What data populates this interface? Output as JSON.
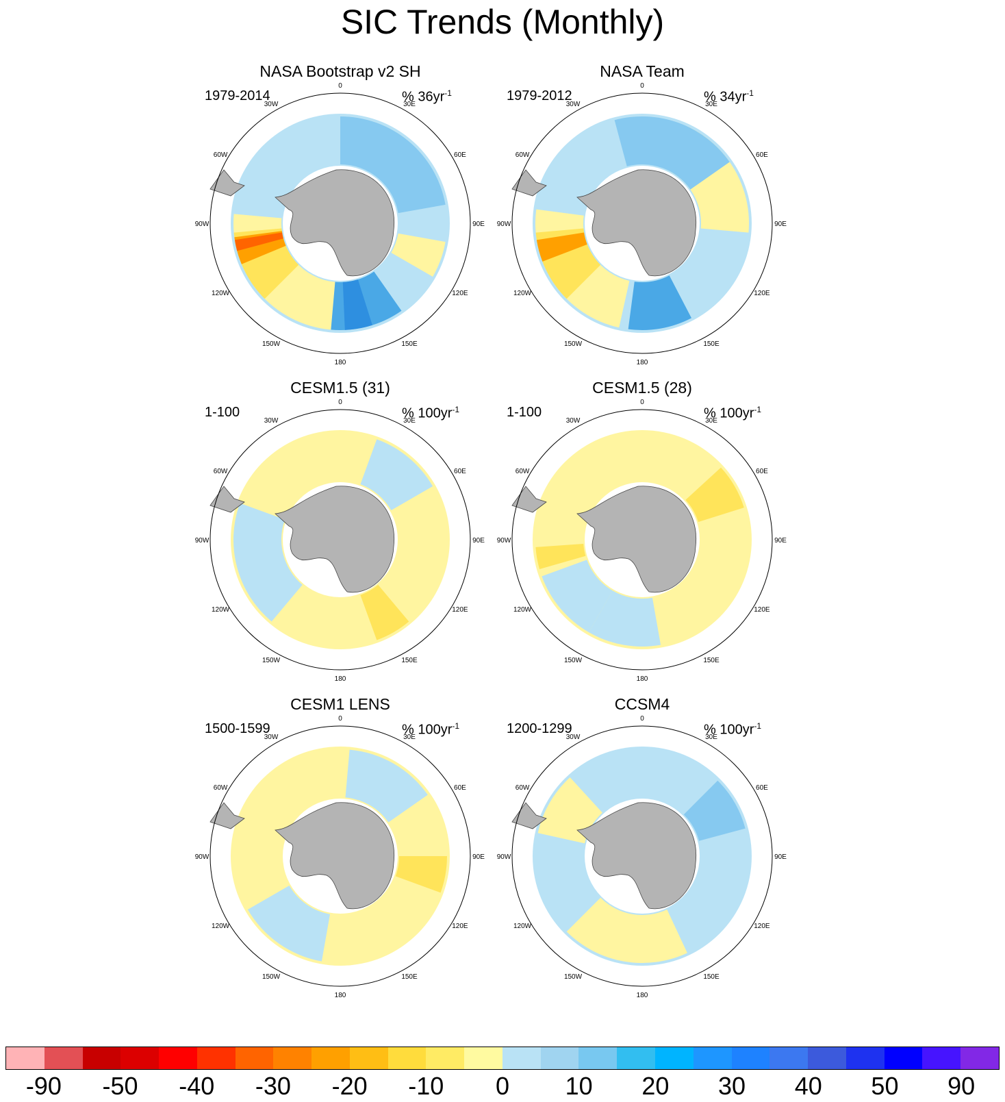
{
  "title": "SIC Trends (Monthly)",
  "longitude_labels": [
    "0",
    "30E",
    "60E",
    "90E",
    "120E",
    "150E",
    "180",
    "150W",
    "120W",
    "90W",
    "60W",
    "30W"
  ],
  "panels": [
    {
      "title": "NASA Bootstrap v2 SH",
      "period": "1979-2014",
      "units": "% 36yr",
      "exp": "-1",
      "base": "#b9e2f5",
      "patches": [
        {
          "c": "#fff5a0",
          "a": 230,
          "w": 90
        },
        {
          "c": "#ffe45a",
          "a": 245,
          "w": 40
        },
        {
          "c": "#ffa000",
          "a": 255,
          "w": 15
        },
        {
          "c": "#ff6400",
          "a": 258,
          "w": 6
        },
        {
          "c": "#86c9f0",
          "a": 40,
          "w": 80
        },
        {
          "c": "#4aa8e6",
          "a": 165,
          "w": 40
        },
        {
          "c": "#fff5a0",
          "a": 110,
          "w": 20
        },
        {
          "c": "#2e8fe0",
          "a": 170,
          "w": 15
        }
      ]
    },
    {
      "title": "NASA Team",
      "period": "1979-2012",
      "units": "% 34yr",
      "exp": "-1",
      "base": "#b9e2f5",
      "patches": [
        {
          "c": "#fff5a0",
          "a": 60,
          "w": 70
        },
        {
          "c": "#fff5a0",
          "a": 235,
          "w": 85
        },
        {
          "c": "#ffe45a",
          "a": 245,
          "w": 40
        },
        {
          "c": "#ffa000",
          "a": 255,
          "w": 12
        },
        {
          "c": "#86c9f0",
          "a": 20,
          "w": 70
        },
        {
          "c": "#4aa8e6",
          "a": 170,
          "w": 35
        }
      ]
    },
    {
      "title": "CESM1.5 (31)",
      "period": "1-100",
      "units": "% 100yr",
      "exp": "-1",
      "base": "#fff5a0",
      "patches": [
        {
          "c": "#b9e2f5",
          "a": 255,
          "w": 70
        },
        {
          "c": "#b9e2f5",
          "a": 40,
          "w": 40
        },
        {
          "c": "#ffe45a",
          "a": 150,
          "w": 20
        }
      ]
    },
    {
      "title": "CESM1.5 (28)",
      "period": "1-100",
      "units": "% 100yr",
      "exp": "-1",
      "base": "#fff5a0",
      "patches": [
        {
          "c": "#b9e2f5",
          "a": 230,
          "w": 40
        },
        {
          "c": "#b9e2f5",
          "a": 190,
          "w": 40
        },
        {
          "c": "#ffe45a",
          "a": 60,
          "w": 25
        },
        {
          "c": "#ffe45a",
          "a": 260,
          "w": 12
        }
      ]
    },
    {
      "title": "CESM1 LENS",
      "period": "1500-1599",
      "units": "% 100yr",
      "exp": "-1",
      "base": "#fff5a0",
      "patches": [
        {
          "c": "#b9e2f5",
          "a": 30,
          "w": 50
        },
        {
          "c": "#b9e2f5",
          "a": 215,
          "w": 50
        },
        {
          "c": "#ffe45a",
          "a": 100,
          "w": 20
        }
      ]
    },
    {
      "title": "CCSM4",
      "period": "1200-1299",
      "units": "% 100yr",
      "exp": "-1",
      "base": "#b9e2f5",
      "patches": [
        {
          "c": "#fff5a0",
          "a": 190,
          "w": 70
        },
        {
          "c": "#fff5a0",
          "a": 300,
          "w": 35
        },
        {
          "c": "#86c9f0",
          "a": 60,
          "w": 30
        }
      ]
    }
  ],
  "chart_data": {
    "type": "heatmap",
    "title": "SIC Trends (Monthly)",
    "projection": "south-polar-stereographic",
    "maps": [
      {
        "name": "NASA Bootstrap v2 SH",
        "period": "1979-2014",
        "units": "% 36yr-1"
      },
      {
        "name": "NASA Team",
        "period": "1979-2012",
        "units": "% 34yr-1"
      },
      {
        "name": "CESM1.5 (31)",
        "period": "1-100",
        "units": "% 100yr-1"
      },
      {
        "name": "CESM1.5 (28)",
        "period": "1-100",
        "units": "% 100yr-1"
      },
      {
        "name": "CESM1 LENS",
        "period": "1500-1599",
        "units": "% 100yr-1"
      },
      {
        "name": "CCSM4",
        "period": "1200-1299",
        "units": "% 100yr-1"
      }
    ],
    "colorbar": {
      "colors": [
        "#ffb3b6",
        "#e35055",
        "#c80000",
        "#dc0000",
        "#ff0000",
        "#ff3200",
        "#ff6400",
        "#ff8200",
        "#ffa000",
        "#ffbe14",
        "#ffdc3c",
        "#ffeb64",
        "#fffaa0",
        "#b9e2f5",
        "#a0d4f0",
        "#78c8f0",
        "#32bef0",
        "#00b4ff",
        "#1e96ff",
        "#1e82ff",
        "#3c78f0",
        "#3c5adc",
        "#1e32f0",
        "#0000ff",
        "#4614ff",
        "#8228e6"
      ],
      "tick_labels": [
        "-90",
        "-50",
        "-40",
        "-30",
        "-20",
        "-10",
        "0",
        "10",
        "20",
        "30",
        "40",
        "50",
        "90"
      ]
    }
  }
}
